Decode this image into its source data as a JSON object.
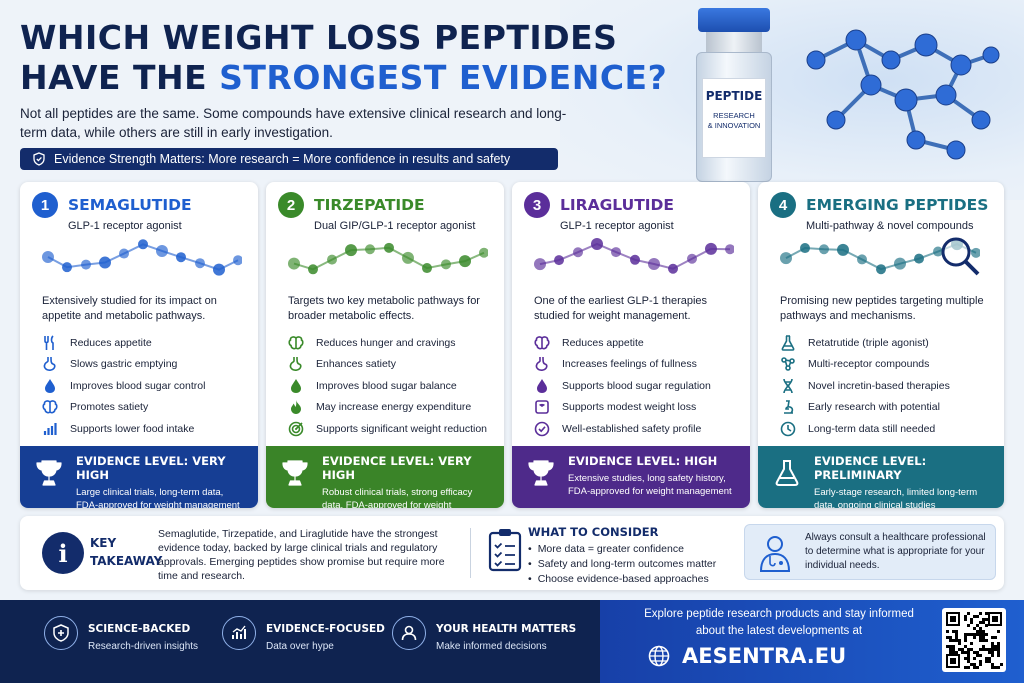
{
  "header": {
    "title_line1": "WHICH WEIGHT LOSS PEPTIDES",
    "title_line2_prefix": "HAVE THE ",
    "title_line2_highlight": "STRONGEST EVIDENCE?",
    "intro": "Not all peptides are the same. Some compounds have extensive clinical research and long-term data, while others are still in early investigation.",
    "banner": "Evidence Strength Matters: More research = More confidence in results and safety"
  },
  "vial": {
    "label_title": "PEPTIDE",
    "label_sub_line1": "RESEARCH",
    "label_sub_line2": "& INNOVATION"
  },
  "cards": [
    {
      "number": "1",
      "name": "SEMAGLUTIDE",
      "subtitle": "GLP-1 receptor agonist",
      "description": "Extensively studied for its impact on appetite and metabolic pathways.",
      "benefits": [
        "Reduces appetite",
        "Slows gastric emptying",
        "Improves blood sugar control",
        "Promotes satiety",
        "Supports lower food intake"
      ],
      "icons": [
        "utensils-icon",
        "stomach-icon",
        "blood-drop-icon",
        "brain-icon",
        "bar-chart-icon"
      ],
      "evidence_level": "EVIDENCE LEVEL: VERY HIGH",
      "evidence_desc": "Large clinical trials, long-term data, FDA-approved for weight management",
      "color": "#1f5fcf"
    },
    {
      "number": "2",
      "name": "TIRZEPATIDE",
      "subtitle": "Dual GIP/GLP-1 receptor agonist",
      "description": "Targets two key metabolic pathways for broader metabolic effects.",
      "benefits": [
        "Reduces hunger and cravings",
        "Enhances satiety",
        "Improves blood sugar balance",
        "May increase energy expenditure",
        "Supports significant weight reduction"
      ],
      "icons": [
        "brain-icon",
        "stomach-icon",
        "blood-drop-icon",
        "flame-icon",
        "target-icon"
      ],
      "evidence_level": "EVIDENCE LEVEL: VERY HIGH",
      "evidence_desc": "Robust clinical trials, strong efficacy data, FDA-approved for weight management",
      "color": "#3a8a2a"
    },
    {
      "number": "3",
      "name": "LIRAGLUTIDE",
      "subtitle": "GLP-1 receptor agonist",
      "description": "One of the earliest GLP-1 therapies studied for weight management.",
      "benefits": [
        "Reduces appetite",
        "Increases feelings of fullness",
        "Supports blood sugar regulation",
        "Supports modest weight loss",
        "Well-established safety profile"
      ],
      "icons": [
        "brain-icon",
        "stomach-icon",
        "blood-drop-icon",
        "scale-icon",
        "check-circle-icon"
      ],
      "evidence_level": "EVIDENCE LEVEL: HIGH",
      "evidence_desc": "Extensive studies, long safety history, FDA-approved for weight management",
      "color": "#5b2e9a"
    },
    {
      "number": "4",
      "name": "EMERGING PEPTIDES",
      "subtitle": "Multi-pathway & novel compounds",
      "description": "Promising new peptides targeting multiple pathways and mechanisms.",
      "benefits": [
        "Retatrutide (triple agonist)",
        "Multi-receptor compounds",
        "Novel incretin-based therapies",
        "Early research with potential",
        "Long-term data still needed"
      ],
      "icons": [
        "flask-icon",
        "network-icon",
        "dna-icon",
        "microscope-icon",
        "clock-icon"
      ],
      "evidence_level": "EVIDENCE LEVEL: PRELIMINARY",
      "evidence_desc": "Early-stage research, limited long-term data, ongoing clinical studies",
      "color": "#1a6f82"
    }
  ],
  "takeaway": {
    "label_line1": "KEY",
    "label_line2": "TAKEAWAY",
    "text": "Semaglutide, Tirzepatide, and Liraglutide have the strongest evidence today, backed by large clinical trials and regulatory approvals. Emerging peptides show promise but require more time and research.",
    "consider_title": "WHAT TO CONSIDER",
    "consider_items": [
      "More data = greater confidence",
      "Safety and long-term outcomes matter",
      "Choose evidence-based approaches"
    ],
    "consult": "Always consult a healthcare professional to determine what is appropriate for your individual needs."
  },
  "footer": {
    "items": [
      {
        "title": "SCIENCE-BACKED",
        "sub": "Research-driven insights",
        "icon": "shield-cross-icon"
      },
      {
        "title": "EVIDENCE-FOCUSED",
        "sub": "Data over hype",
        "icon": "chart-growth-icon"
      },
      {
        "title": "YOUR HEALTH MATTERS",
        "sub": "Make informed decisions",
        "icon": "person-icon"
      }
    ],
    "explore": "Explore peptide research products and stay informed about the latest developments at",
    "site": "AESENTRA.EU"
  }
}
